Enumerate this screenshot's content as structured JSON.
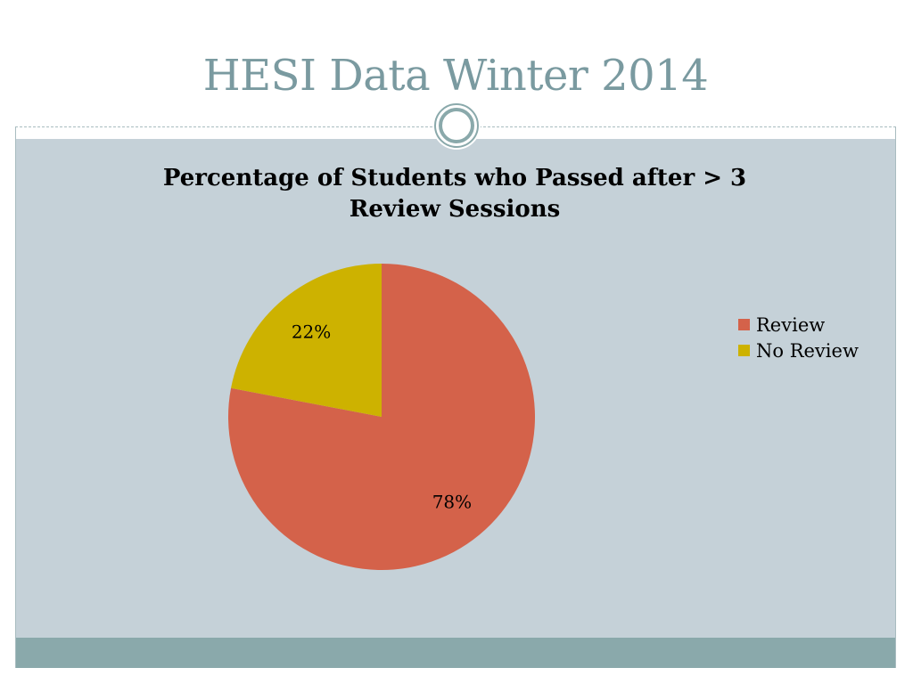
{
  "slide": {
    "title": "HESI Data Winter 2014"
  },
  "colors": {
    "title": "#7a9aa0",
    "content_bg": "#c5d1d8",
    "footer": "#8aa9ab",
    "ornament": "#8aa9ab"
  },
  "chart_data": {
    "type": "pie",
    "title_lines": [
      "Percentage of Students who Passed after > 3",
      "Review Sessions"
    ],
    "categories": [
      "Review",
      "No Review"
    ],
    "values": [
      78,
      22
    ],
    "data_labels": [
      "78%",
      "22%"
    ],
    "colors": [
      "#d4624a",
      "#cdb200"
    ],
    "start_angle_deg": 0,
    "direction": "clockwise",
    "legend_position": "right",
    "legend": [
      "Review",
      "No Review"
    ]
  }
}
